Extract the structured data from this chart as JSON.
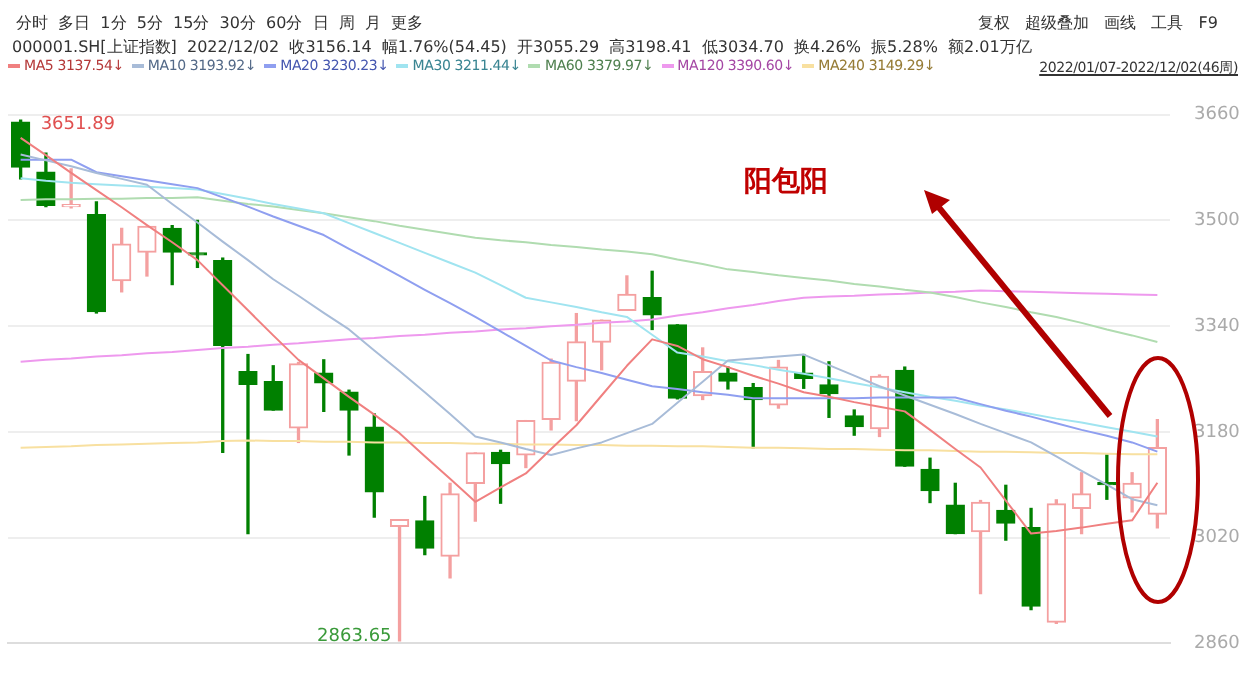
{
  "chart_data": {
    "type": "candlestick",
    "title": "分时  多日  1分  5分  15分  30分  60分  日  周  月  更多",
    "subtitle": "000001.SH[上证指数]  2022/12/02  收3156.14  幅1.76%(54.45)  开3055.29  高3198.41  低3034.70  换4.26%  振5.28%  额2.01万亿",
    "annotations": [
      "复权   超级叠加   画线   工具   F9",
      "2022/01/07-2022/12/02(46周)",
      "阳包阳",
      "3651.89",
      "2863.65"
    ],
    "categories": [
      null,
      null,
      null,
      null,
      null,
      null,
      null,
      null,
      null,
      null,
      null,
      null,
      null,
      null,
      null,
      null,
      null,
      null,
      null,
      null,
      null,
      null,
      null,
      null,
      null,
      null,
      null,
      null,
      null,
      null,
      null,
      null,
      null,
      null,
      null,
      null,
      null,
      null,
      null,
      null,
      null,
      null,
      null,
      null,
      null,
      null
    ],
    "ohlc": [
      [
        3649,
        3651.89,
        3563,
        3581
      ],
      [
        3573,
        3602,
        3521,
        3523
      ],
      [
        3521,
        3578,
        3519,
        3523
      ],
      [
        3509,
        3528,
        3360,
        3362
      ],
      [
        3409,
        3488,
        3392,
        3464
      ],
      [
        3452,
        3491,
        3416,
        3491
      ],
      [
        3488,
        3492,
        3403,
        3452
      ],
      [
        3451,
        3500,
        3429,
        3448
      ],
      [
        3439,
        3443,
        3149,
        3311
      ],
      [
        3271,
        3297,
        3026,
        3252
      ],
      [
        3256,
        3280,
        3213,
        3213
      ],
      [
        3186,
        3285,
        3164,
        3283
      ],
      [
        3269,
        3289,
        3211,
        3254
      ],
      [
        3240,
        3243,
        3145,
        3213
      ],
      [
        3187,
        3207,
        3051,
        3089
      ],
      [
        3037,
        3047,
        2863.65,
        3047
      ],
      [
        3045,
        3082,
        2994,
        3004
      ],
      [
        2992,
        3102,
        2959,
        3086
      ],
      [
        3102,
        3148,
        3045,
        3148
      ],
      [
        3149,
        3152,
        3072,
        3132
      ],
      [
        3145,
        3197,
        3126,
        3197
      ],
      [
        3199,
        3290,
        3183,
        3285
      ],
      [
        3257,
        3359,
        3197,
        3316
      ],
      [
        3316,
        3349,
        3274,
        3349
      ],
      [
        3364,
        3416,
        3364,
        3388
      ],
      [
        3383,
        3423,
        3335,
        3357
      ],
      [
        3342,
        3342,
        3230,
        3231
      ],
      [
        3235,
        3307,
        3229,
        3271
      ],
      [
        3269,
        3278,
        3245,
        3257
      ],
      [
        3247,
        3253,
        3156,
        3229
      ],
      [
        3221,
        3288,
        3216,
        3278
      ],
      [
        3269,
        3297,
        3246,
        3261
      ],
      [
        3251,
        3286,
        3202,
        3238
      ],
      [
        3204,
        3213,
        3175,
        3188
      ],
      [
        3185,
        3266,
        3173,
        3264
      ],
      [
        3273,
        3278,
        3128,
        3128
      ],
      [
        3123,
        3140,
        3073,
        3091
      ],
      [
        3069,
        3102,
        3026,
        3026
      ],
      [
        3029,
        3076,
        2935,
        3073
      ],
      [
        3061,
        3099,
        3016,
        3042
      ],
      [
        3035,
        3064,
        2911,
        2916
      ],
      [
        2892,
        3077,
        2890,
        3071
      ],
      [
        3064,
        3118,
        3026,
        3086
      ],
      [
        3103,
        3145,
        3078,
        3100
      ],
      [
        3080,
        3118,
        3059,
        3102
      ],
      [
        3055.29,
        3198.41,
        3034.7,
        3156.14
      ]
    ],
    "colors": [
      "#008000",
      "#008000",
      "#f4a0a0",
      "#008000",
      "#f4a0a0",
      "#f4a0a0",
      "#008000",
      "#008000",
      "#008000",
      "#008000",
      "#008000",
      "#f4a0a0",
      "#008000",
      "#008000",
      "#008000",
      "#f4a0a0",
      "#008000",
      "#f4a0a0",
      "#f4a0a0",
      "#008000",
      "#f4a0a0",
      "#f4a0a0",
      "#f4a0a0",
      "#f4a0a0",
      "#f4a0a0",
      "#008000",
      "#008000",
      "#f4a0a0",
      "#008000",
      "#008000",
      "#f4a0a0",
      "#008000",
      "#008000",
      "#008000",
      "#f4a0a0",
      "#008000",
      "#008000",
      "#008000",
      "#f4a0a0",
      "#008000",
      "#008000",
      "#f4a0a0",
      "#f4a0a0",
      "#008000",
      "#f4a0a0",
      "#f4a0a0"
    ],
    "series": [
      {
        "type": "line",
        "name": "MA5 3137.54↓",
        "color": "#f08080",
        "values": [
          3625,
          3599,
          3572,
          3546,
          3520,
          3493,
          3467,
          3440,
          3402,
          3364,
          3326,
          3289,
          3261,
          3233,
          3206,
          3178,
          3143,
          3109,
          3074,
          3096,
          3117,
          3154,
          3190,
          3235,
          3280,
          3320,
          3310,
          3290,
          3278,
          3265,
          3253,
          3240,
          3233,
          3225,
          3218,
          3211,
          3183,
          3154,
          3126,
          3076,
          3026,
          3030,
          3035,
          3041,
          3046,
          3103
        ]
      },
      {
        "type": "line",
        "name": "MA10 3193.92↓",
        "color": "#a8bcd8",
        "values": [
          3600,
          3591,
          3582,
          3572,
          3563,
          3554,
          3525,
          3497,
          3468,
          3440,
          3411,
          3386,
          3360,
          3335,
          3303,
          3272,
          3240,
          3207,
          3173,
          3164,
          3154,
          3145,
          3155,
          3164,
          3178,
          3192,
          3224,
          3256,
          3288,
          3291,
          3294,
          3297,
          3281,
          3265,
          3249,
          3235,
          3221,
          3207,
          3192,
          3178,
          3164,
          3143,
          3121,
          3100,
          3078,
          3069
        ]
      },
      {
        "type": "line",
        "name": "MA20 3230.23↓",
        "color": "#8f9ff0",
        "values": [
          3592,
          3592,
          3592,
          3573,
          3567,
          3561,
          3555,
          3549,
          3535,
          3521,
          3506,
          3492,
          3478,
          3457,
          3437,
          3416,
          3395,
          3375,
          3354,
          3332,
          3310,
          3288,
          3278,
          3269,
          3259,
          3249,
          3245,
          3240,
          3236,
          3231,
          3231,
          3231,
          3231,
          3231,
          3232,
          3232,
          3232,
          3232,
          3222,
          3212,
          3203,
          3193,
          3183,
          3174,
          3164,
          3150
        ]
      },
      {
        "type": "line",
        "name": "MA30 3211.44↓",
        "color": "#a0e4f0",
        "values": [
          3564,
          3560,
          3557,
          3555,
          3553,
          3551,
          3549,
          3547,
          3540,
          3533,
          3525,
          3518,
          3511,
          3496,
          3481,
          3466,
          3451,
          3436,
          3421,
          3402,
          3383,
          3376,
          3369,
          3361,
          3354,
          3327,
          3300,
          3294,
          3287,
          3281,
          3274,
          3268,
          3261,
          3254,
          3247,
          3240,
          3233,
          3227,
          3220,
          3214,
          3207,
          3200,
          3194,
          3187,
          3180,
          3173
        ]
      },
      {
        "type": "line",
        "name": "MA60 3379.97↓",
        "color": "#b0dcb0",
        "values": [
          3531,
          3532,
          3532,
          3533,
          3533,
          3534,
          3534,
          3535,
          3530,
          3525,
          3521,
          3516,
          3511,
          3505,
          3499,
          3492,
          3486,
          3480,
          3474,
          3470,
          3467,
          3463,
          3460,
          3456,
          3453,
          3449,
          3441,
          3434,
          3426,
          3422,
          3417,
          3413,
          3409,
          3404,
          3400,
          3395,
          3391,
          3384,
          3376,
          3369,
          3361,
          3354,
          3345,
          3335,
          3326,
          3316
        ]
      },
      {
        "type": "line",
        "name": "MA120 3390.60↓",
        "color": "#ee99ee",
        "values": [
          3286,
          3289,
          3291,
          3294,
          3296,
          3299,
          3301,
          3304,
          3307,
          3309,
          3312,
          3314,
          3317,
          3320,
          3322,
          3325,
          3327,
          3330,
          3332,
          3335,
          3337,
          3340,
          3342,
          3345,
          3347,
          3350,
          3356,
          3361,
          3367,
          3372,
          3378,
          3383,
          3385,
          3386,
          3388,
          3389,
          3391,
          3392,
          3394,
          3393,
          3392,
          3391,
          3390,
          3389,
          3388,
          3387
        ]
      },
      {
        "type": "line",
        "name": "MA240 3149.29↓",
        "color": "#f8e0a0",
        "values": [
          3156,
          3157,
          3158,
          3160,
          3161,
          3162,
          3163,
          3164,
          3166,
          3167,
          3166,
          3166,
          3165,
          3165,
          3164,
          3164,
          3163,
          3163,
          3162,
          3162,
          3161,
          3161,
          3160,
          3160,
          3159,
          3159,
          3158,
          3158,
          3157,
          3156,
          3156,
          3155,
          3154,
          3154,
          3153,
          3152,
          3152,
          3151,
          3150,
          3150,
          3149,
          3148,
          3148,
          3147,
          3146,
          3146
        ]
      }
    ],
    "ylim": [
      2860,
      3660
    ],
    "yticks": [
      2860,
      3020,
      3180,
      3340,
      3500,
      3660
    ],
    "grid": "y",
    "legend": "top left",
    "marker": "none",
    "line_style": "solid",
    "tick_labels": "y"
  }
}
